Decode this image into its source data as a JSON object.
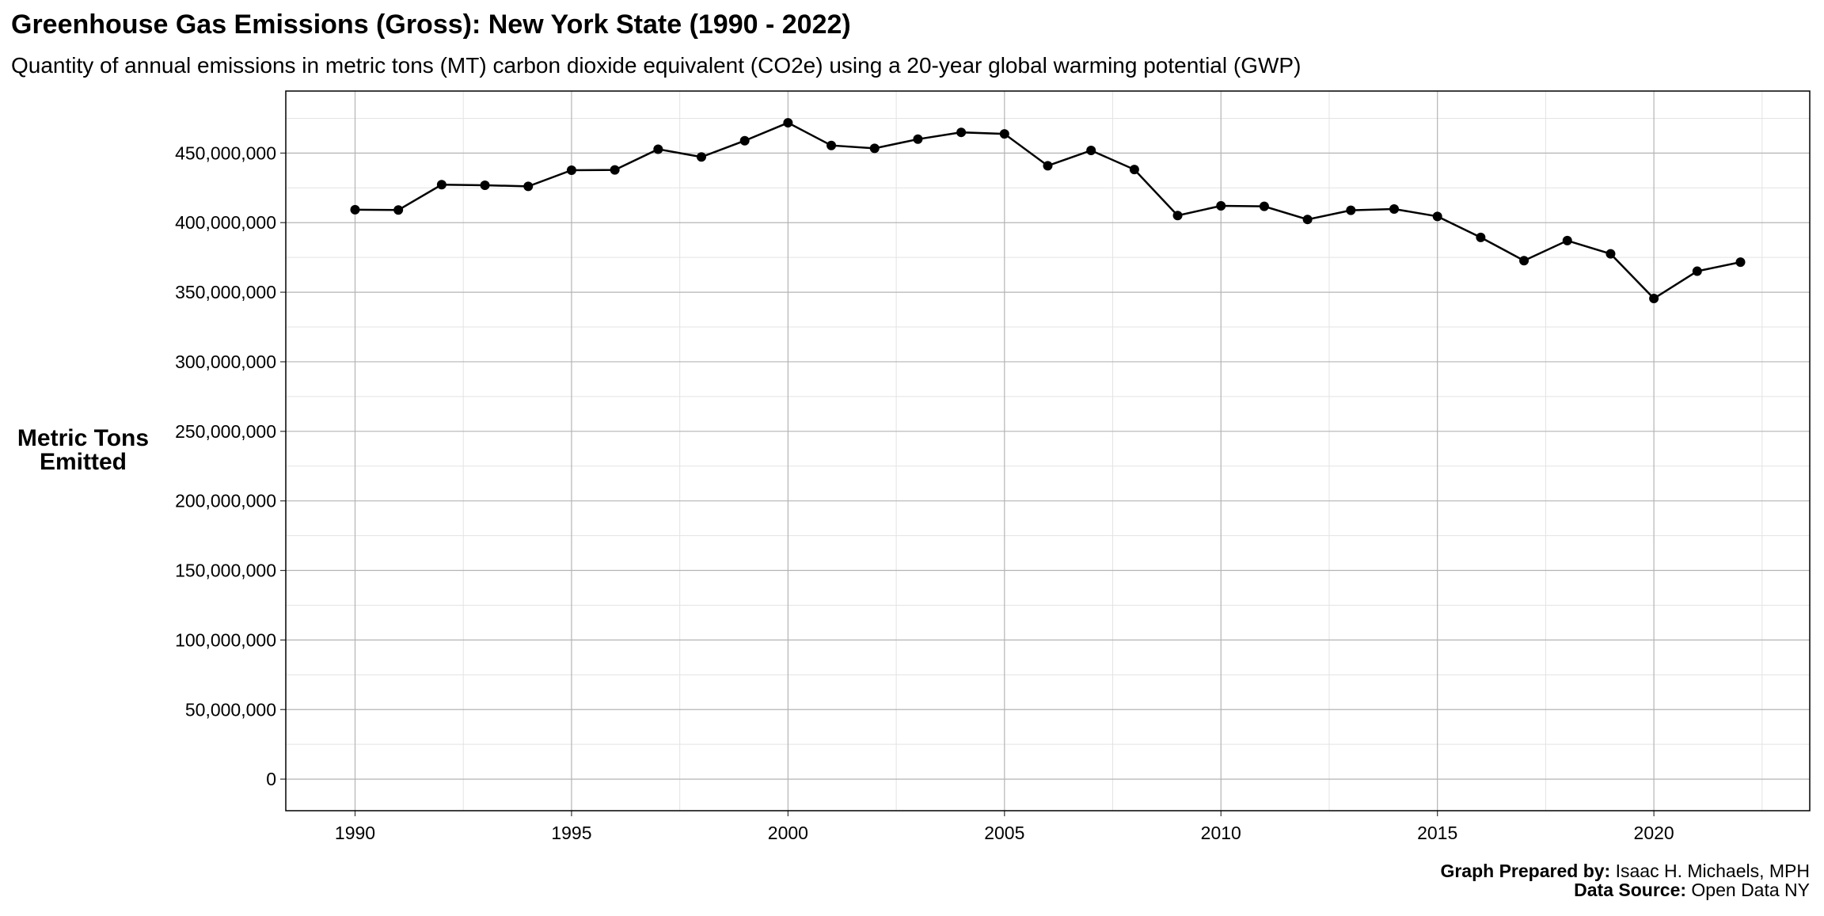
{
  "chart_data": {
    "type": "line",
    "title": "Greenhouse Gas Emissions (Gross): New York State (1990 - 2022)",
    "subtitle": "Quantity of annual emissions in metric tons (MT) carbon dioxide equivalent (CO2e) using a 20-year global warming potential (GWP)",
    "xlabel": "",
    "ylabel_lines": [
      "Metric Tons",
      "Emitted"
    ],
    "x": [
      1990,
      1991,
      1992,
      1993,
      1994,
      1995,
      1996,
      1997,
      1998,
      1999,
      2000,
      2001,
      2002,
      2003,
      2004,
      2005,
      2006,
      2007,
      2008,
      2009,
      2010,
      2011,
      2012,
      2013,
      2014,
      2015,
      2016,
      2017,
      2018,
      2019,
      2020,
      2021,
      2022
    ],
    "y": [
      409300000,
      409100000,
      427300000,
      426900000,
      426100000,
      437700000,
      437900000,
      452800000,
      447200000,
      458900000,
      471800000,
      455500000,
      453400000,
      460000000,
      464900000,
      463800000,
      440900000,
      451900000,
      438200000,
      405100000,
      412100000,
      411700000,
      402300000,
      408900000,
      409800000,
      404500000,
      389400000,
      372700000,
      387100000,
      377600000,
      345500000,
      365100000,
      371600000
    ],
    "xlim": [
      1988.4,
      2023.6
    ],
    "ylim": [
      -22700000,
      494600000
    ],
    "x_ticks": [
      1990,
      1995,
      2000,
      2005,
      2010,
      2015,
      2020
    ],
    "x_tick_labels": [
      "1990",
      "1995",
      "2000",
      "2005",
      "2010",
      "2015",
      "2020"
    ],
    "y_ticks": [
      0,
      50000000,
      100000000,
      150000000,
      200000000,
      250000000,
      300000000,
      350000000,
      400000000,
      450000000
    ],
    "y_tick_labels": [
      "0",
      "50,000,000",
      "100,000,000",
      "150,000,000",
      "200,000,000",
      "250,000,000",
      "300,000,000",
      "350,000,000",
      "400,000,000",
      "450,000,000"
    ],
    "grid": true,
    "line_color": "#000000",
    "caption": {
      "prepared_label": "Graph Prepared by:",
      "prepared_value": " Isaac H. Michaels, MPH",
      "source_label": "Data Source:",
      "source_value": " Open Data NY"
    }
  }
}
